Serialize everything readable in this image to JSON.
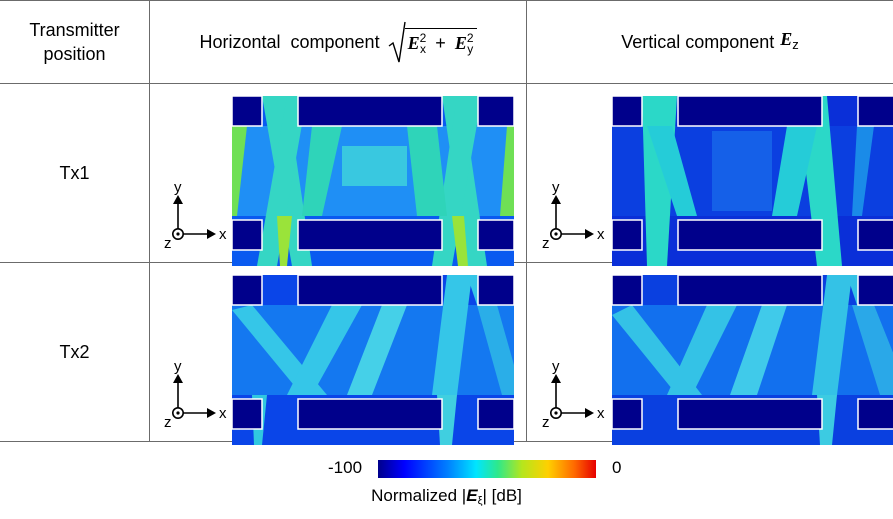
{
  "table": {
    "header": {
      "transmitter_line1": "Transmitter",
      "transmitter_line2": "position",
      "horizontal_text": "Horizontal  component",
      "horizontal_sqrt_a": "E",
      "horizontal_sub_a": "x",
      "horizontal_sup_a": "2",
      "horizontal_plus": "+",
      "horizontal_sqrt_b": "E",
      "horizontal_sub_b": "y",
      "horizontal_sup_b": "2",
      "vertical_text": "Vertical component",
      "vertical_sym": "E",
      "vertical_sub": "z"
    },
    "rows": [
      {
        "label": "Tx1"
      },
      {
        "label": "Tx2"
      }
    ],
    "axes": {
      "x": "x",
      "y": "y",
      "z": "z"
    }
  },
  "colorbar": {
    "min_label": "-100",
    "max_label": "0",
    "title_prefix": "Normalized |",
    "title_symbol": "E",
    "title_sub": "ξ",
    "title_suffix": "| [dB]",
    "colors": [
      "#00008b",
      "#0000ff",
      "#0080ff",
      "#00e5ff",
      "#2ee88b",
      "#b5e61d",
      "#ffd000",
      "#ff6a00",
      "#e60000"
    ]
  }
}
